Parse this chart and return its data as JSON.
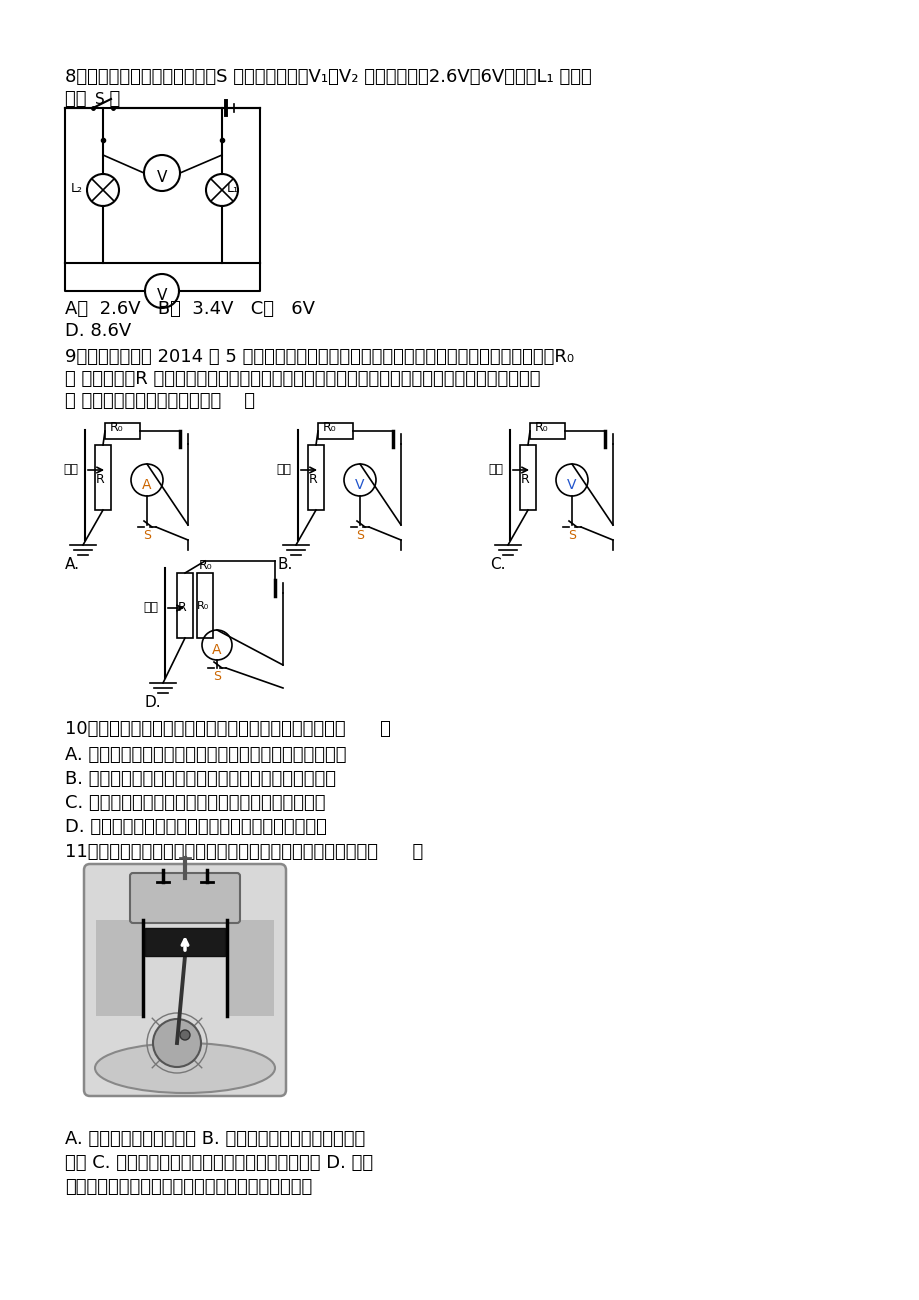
{
  "bg_color": "#ffffff",
  "text_color": "#000000",
  "q8_line1": "8．如右图所示的电路中，开关S 闭合后，电压表V₁、V₂ 的示数分别为2.6V、6V，则灯L₁ 的电压",
  "q8_line2": "为（    ）",
  "q8_ans1": "A．  2.6V   B．  3.4V   C．   6V",
  "q8_ans2": "D. 8.6V",
  "q9_line1": "9．小梦为济宁市 2014 年 5 月份的体育测试设计了一个电子身高测量仪．如图的四个电路中，R₀",
  "q9_line2": "是 定值电阻，R 是滑动变阻器，电源电压不变，滑片会随身高上下平移．能够实现身高越高，电压",
  "q9_line3": "表 或电流表示数越大的电路是（    ）",
  "q10_line1": "10．关于电流、电压、电阻的关系，下列说法正确的是（      ）",
  "q10_A": "A. 在电压一定时，导体的电阻跟通过到导体的电流成反比",
  "q10_B": "B. 在电阻一定时，导体的电阻跟通过导体的电流成正比",
  "q10_C": "C. 在电流一定时，导体的电阻跟导体两端电压成正比",
  "q10_D": "D. 在电压一定时，通过导体的电流跟导体电阻成反比",
  "q11_line1": "11．如图是四冲程汽油机工作状态示意图，下列说法正确的是（      ）",
  "q11_ans1": "A. 该图表示的是压缩冲程 B. 该冲程是内能转化为机械能的",
  "q11_ans2": "过程 C. 该冲程中汽缸内气体分子运动剧烈程度减弱 D. 该冲",
  "q11_ans3": "程中主要是通过热传递的方式改变汽缸内物质的内能"
}
